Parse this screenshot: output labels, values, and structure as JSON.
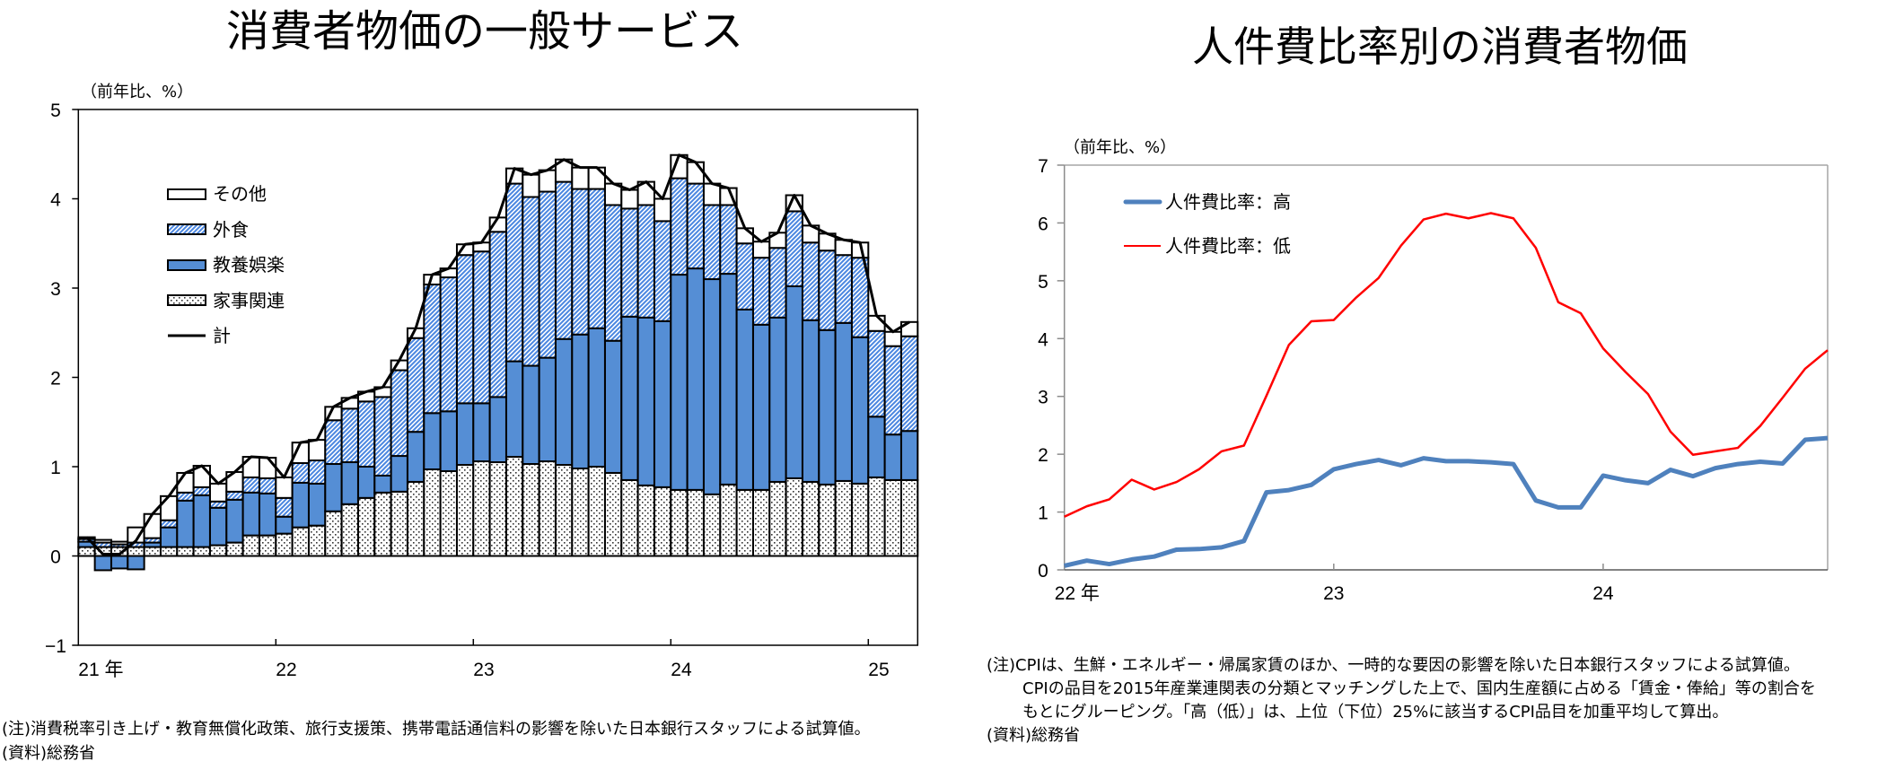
{
  "left_panel": {
    "notes": [
      "(注)消費税率引き上げ・教育無償化政策、旅行支援策、携帯電話通信料の影響を除いた日本銀行スタッフによる試算値。",
      "(資料)総務省"
    ]
  },
  "right_panel": {
    "notes": [
      "(注)CPIは、生鮮・エネルギー・帰属家賃のほか、一時的な要因の影響を除いた日本銀行スタッフによる試算値。",
      "CPIの品目を2015年産業連関表の分類とマッチングした上で、国内生産額に占める「賃金・俸給」等の割合を",
      "もとにグルーピング。「高（低）」は、上位（下位）25%に該当するCPI品目を加重平均して算出。",
      "(資料)総務省"
    ]
  },
  "chart_data": [
    {
      "type": "bar",
      "stacked": true,
      "title": "消費者物価の一般サービス",
      "xlabel": "",
      "ylabel": "（前年比、%）",
      "ylim": [
        -1,
        5
      ],
      "y_ticks": [
        -1,
        0,
        1,
        2,
        3,
        4,
        5
      ],
      "y_tick_labels": [
        "−1",
        "0",
        "1",
        "2",
        "3",
        "4",
        "5"
      ],
      "x_tick_labels": [
        "21 年",
        "22",
        "23",
        "24",
        "25"
      ],
      "grid": false,
      "legend": {
        "position": "upper-left",
        "entries": [
          "その他",
          "外食",
          "教養娯楽",
          "家事関連",
          "計"
        ]
      },
      "x": [
        "2021-01",
        "2021-02",
        "2021-03",
        "2021-04",
        "2021-05",
        "2021-06",
        "2021-07",
        "2021-08",
        "2021-09",
        "2021-10",
        "2021-11",
        "2021-12",
        "2022-01",
        "2022-02",
        "2022-03",
        "2022-04",
        "2022-05",
        "2022-06",
        "2022-07",
        "2022-08",
        "2022-09",
        "2022-10",
        "2022-11",
        "2022-12",
        "2023-01",
        "2023-02",
        "2023-03",
        "2023-04",
        "2023-05",
        "2023-06",
        "2023-07",
        "2023-08",
        "2023-09",
        "2023-10",
        "2023-11",
        "2023-12",
        "2024-01",
        "2024-02",
        "2024-03",
        "2024-04",
        "2024-05",
        "2024-06",
        "2024-07",
        "2024-08",
        "2024-09",
        "2024-10",
        "2024-11",
        "2024-12",
        "2025-01",
        "2025-02",
        "2025-03"
      ],
      "series": [
        {
          "name": "家事関連",
          "type": "bar",
          "pattern": "dots",
          "color": "#FFFFFF",
          "values": [
            0.1,
            0.1,
            0.1,
            0.1,
            0.1,
            0.1,
            0.1,
            0.1,
            0.12,
            0.15,
            0.23,
            0.23,
            0.25,
            0.32,
            0.34,
            0.5,
            0.58,
            0.65,
            0.71,
            0.72,
            0.83,
            0.97,
            0.95,
            1.02,
            1.06,
            1.05,
            1.11,
            1.03,
            1.06,
            1.02,
            0.98,
            1.0,
            0.93,
            0.85,
            0.79,
            0.77,
            0.74,
            0.74,
            0.69,
            0.8,
            0.74,
            0.74,
            0.83,
            0.87,
            0.83,
            0.8,
            0.84,
            0.81,
            0.88,
            0.85,
            0.85
          ]
        },
        {
          "name": "教養娯楽",
          "type": "bar",
          "color": "#558ED5",
          "values": [
            0.06,
            -0.16,
            -0.14,
            -0.15,
            0.05,
            0.22,
            0.52,
            0.58,
            0.42,
            0.48,
            0.48,
            0.47,
            0.19,
            0.5,
            0.47,
            0.53,
            0.47,
            0.35,
            0.19,
            0.4,
            0.56,
            0.63,
            0.67,
            0.69,
            0.65,
            0.73,
            1.07,
            1.1,
            1.16,
            1.41,
            1.5,
            1.55,
            1.48,
            1.83,
            1.88,
            1.86,
            2.41,
            2.48,
            2.41,
            2.36,
            2.02,
            1.85,
            1.84,
            2.15,
            1.81,
            1.73,
            1.77,
            1.64,
            0.68,
            0.51,
            0.55
          ]
        },
        {
          "name": "外食",
          "type": "bar",
          "pattern": "hatch",
          "color": "#4A86E0",
          "values": [
            0.03,
            0.05,
            0.03,
            0.05,
            0.05,
            0.08,
            0.09,
            0.09,
            0.07,
            0.09,
            0.17,
            0.17,
            0.21,
            0.22,
            0.26,
            0.49,
            0.6,
            0.73,
            0.88,
            0.96,
            1.05,
            1.44,
            1.5,
            1.66,
            1.7,
            1.85,
            1.99,
            1.89,
            1.86,
            1.76,
            1.63,
            1.56,
            1.52,
            1.21,
            1.26,
            1.12,
            1.08,
            0.95,
            0.83,
            0.77,
            0.74,
            0.75,
            0.78,
            0.84,
            0.87,
            0.89,
            0.76,
            0.89,
            0.96,
            0.99,
            1.06
          ]
        },
        {
          "name": "その他",
          "type": "bar",
          "color": "#FFFFFF",
          "values": [
            0.02,
            0.03,
            0.03,
            0.17,
            0.27,
            0.27,
            0.22,
            0.24,
            0.2,
            0.22,
            0.23,
            0.23,
            0.23,
            0.23,
            0.23,
            0.15,
            0.12,
            0.11,
            0.11,
            0.11,
            0.11,
            0.11,
            0.1,
            0.12,
            0.1,
            0.16,
            0.17,
            0.25,
            0.24,
            0.25,
            0.24,
            0.24,
            0.24,
            0.21,
            0.26,
            0.25,
            0.26,
            0.24,
            0.24,
            0.19,
            0.17,
            0.18,
            0.17,
            0.18,
            0.19,
            0.19,
            0.17,
            0.17,
            0.17,
            0.16,
            0.16
          ]
        },
        {
          "name": "計",
          "type": "line",
          "color": "#000000",
          "values": [
            0.21,
            0.02,
            0.02,
            0.17,
            0.47,
            0.67,
            0.93,
            1.01,
            0.81,
            0.94,
            1.11,
            1.1,
            0.88,
            1.27,
            1.3,
            1.67,
            1.77,
            1.84,
            1.89,
            2.19,
            2.55,
            3.15,
            3.22,
            3.49,
            3.51,
            3.79,
            4.34,
            4.27,
            4.32,
            4.44,
            4.35,
            4.35,
            4.17,
            4.1,
            4.19,
            4.0,
            4.49,
            4.41,
            4.17,
            4.12,
            3.67,
            3.52,
            3.62,
            4.04,
            3.7,
            3.61,
            3.54,
            3.51,
            2.69,
            2.51,
            2.62
          ]
        }
      ]
    },
    {
      "type": "line",
      "title": "人件費比率別の消費者物価",
      "xlabel": "",
      "ylabel": "（前年比、%）",
      "ylim": [
        0,
        7
      ],
      "y_ticks": [
        0,
        1,
        2,
        3,
        4,
        5,
        6,
        7
      ],
      "y_tick_labels": [
        "0",
        "1",
        "2",
        "3",
        "4",
        "5",
        "6",
        "7"
      ],
      "x_tick_labels": [
        "22 年",
        "23",
        "24"
      ],
      "grid": false,
      "legend": {
        "position": "upper-left",
        "entries": [
          "人件費比率：高",
          "人件費比率：低"
        ]
      },
      "x": [
        "2022-01",
        "2022-02",
        "2022-03",
        "2022-04",
        "2022-05",
        "2022-06",
        "2022-07",
        "2022-08",
        "2022-09",
        "2022-10",
        "2022-11",
        "2022-12",
        "2023-01",
        "2023-02",
        "2023-03",
        "2023-04",
        "2023-05",
        "2023-06",
        "2023-07",
        "2023-08",
        "2023-09",
        "2023-10",
        "2023-11",
        "2023-12",
        "2024-01",
        "2024-02",
        "2024-03",
        "2024-04",
        "2024-05",
        "2024-06",
        "2024-07",
        "2024-08",
        "2024-09",
        "2024-10",
        "2024-11"
      ],
      "series": [
        {
          "name": "人件費比率：高",
          "color": "#4F81BD",
          "values": [
            0.07,
            0.16,
            0.1,
            0.18,
            0.23,
            0.35,
            0.36,
            0.39,
            0.5,
            1.34,
            1.38,
            1.47,
            1.74,
            1.83,
            1.9,
            1.81,
            1.93,
            1.88,
            1.88,
            1.86,
            1.83,
            1.2,
            1.08,
            1.08,
            1.63,
            1.55,
            1.5,
            1.73,
            1.62,
            1.76,
            1.83,
            1.87,
            1.84,
            2.25,
            2.28
          ]
        },
        {
          "name": "人件費比率：低",
          "color": "#FF0000",
          "values": [
            0.92,
            1.1,
            1.22,
            1.56,
            1.39,
            1.52,
            1.74,
            2.05,
            2.15,
            3.01,
            3.89,
            4.3,
            4.32,
            4.71,
            5.05,
            5.61,
            6.06,
            6.16,
            6.08,
            6.17,
            6.08,
            5.57,
            4.63,
            4.44,
            3.83,
            3.42,
            3.04,
            2.39,
            1.99,
            2.05,
            2.11,
            2.49,
            2.98,
            3.48,
            3.8
          ]
        }
      ]
    }
  ]
}
